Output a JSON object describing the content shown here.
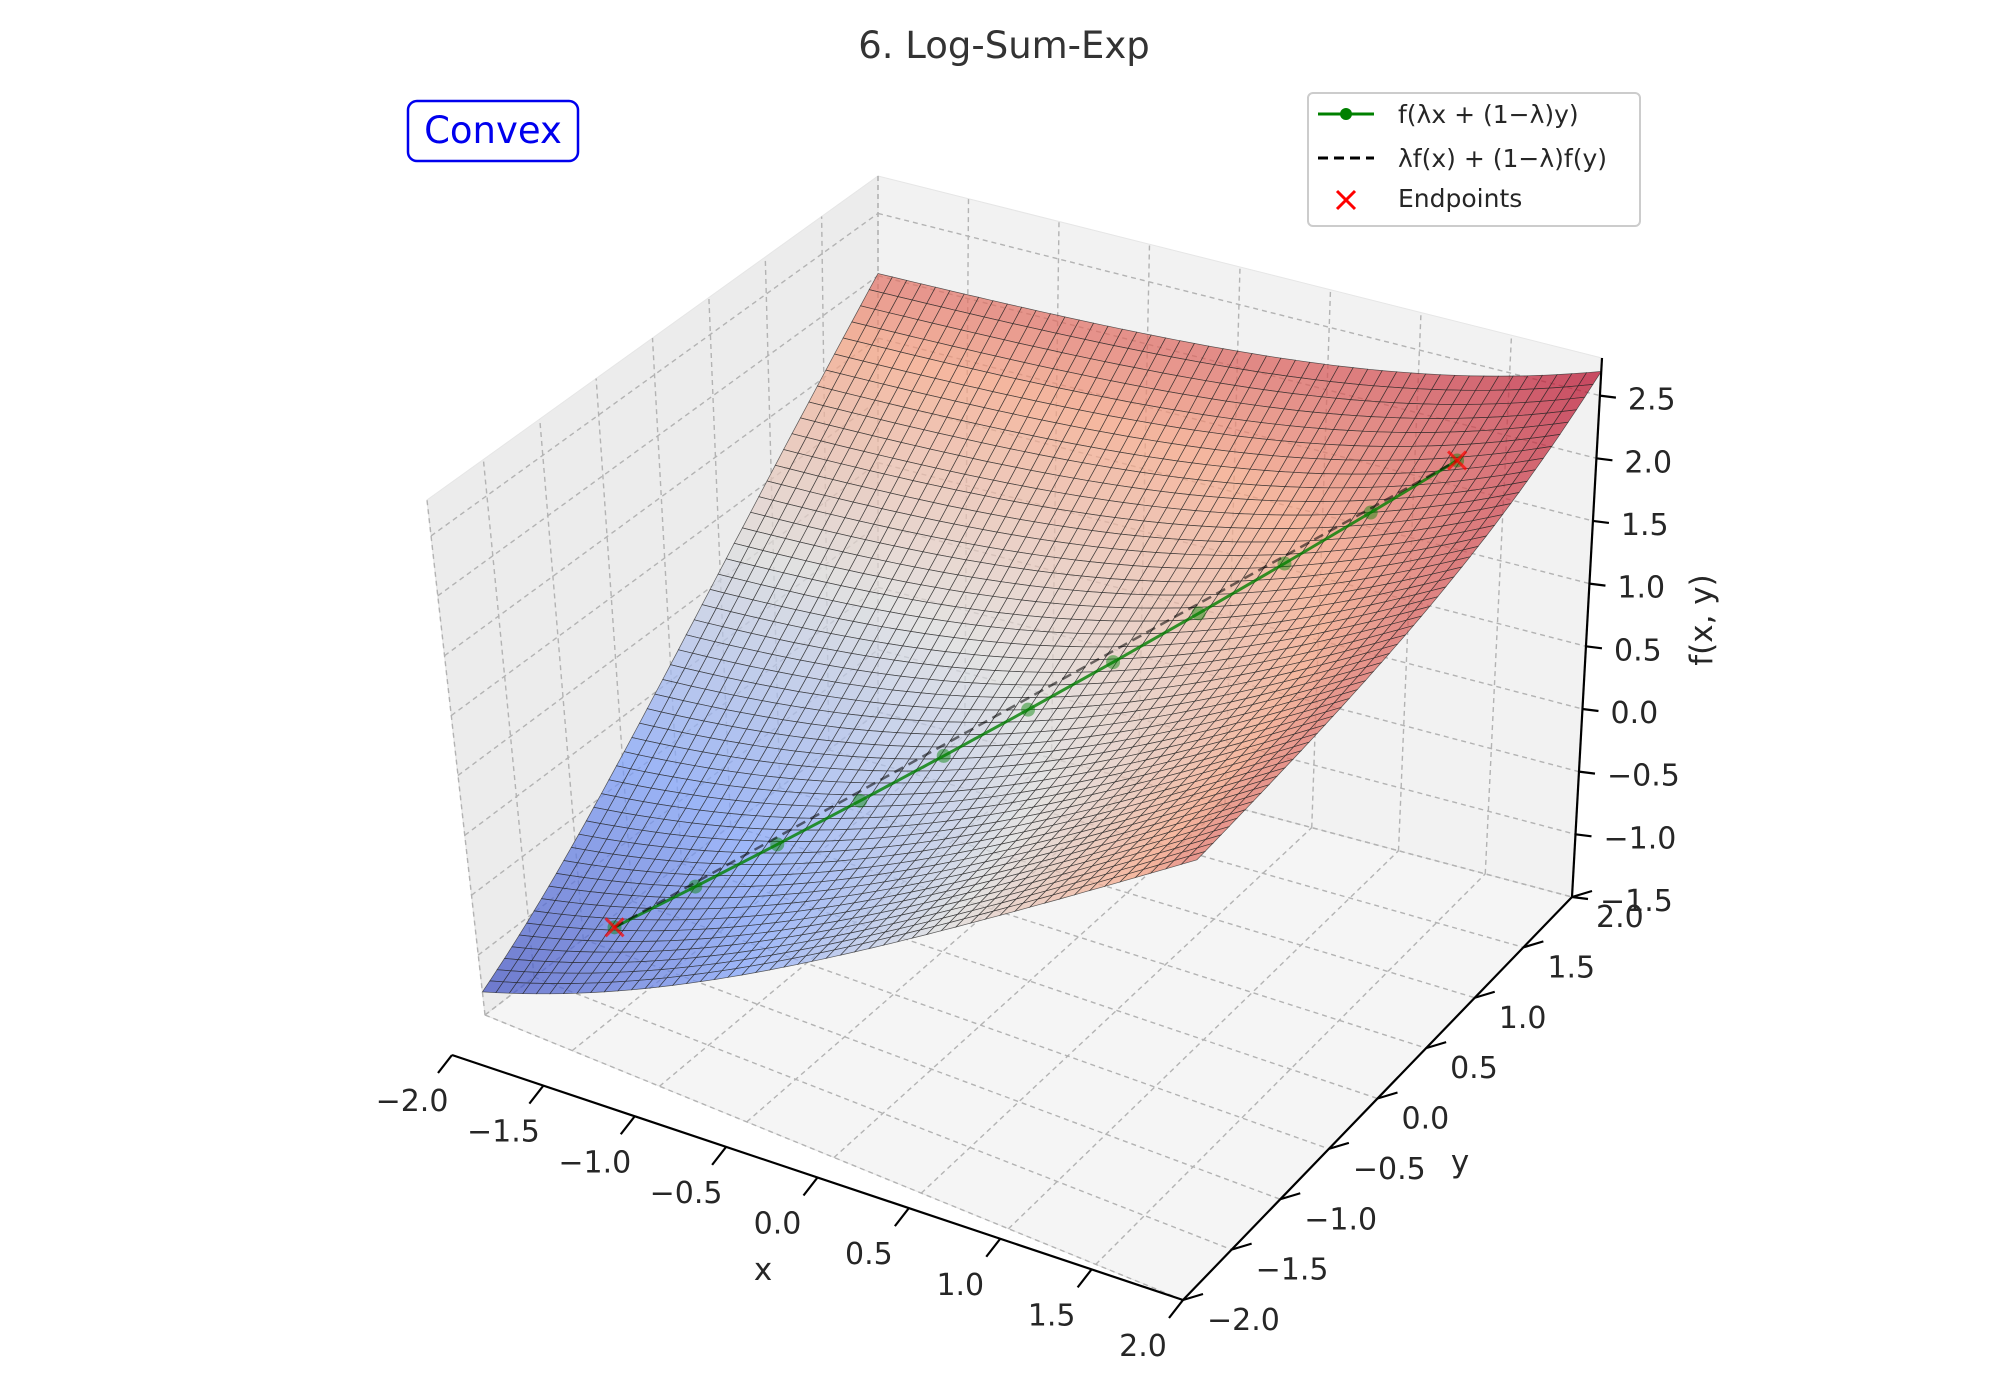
{
  "chart_data": {
    "type": "surface3d",
    "title": "6. Log-Sum-Exp",
    "function": "log(exp(x) + exp(y))",
    "xlabel": "x",
    "ylabel": "y",
    "zlabel": "f(x, y)",
    "xlim": [
      -2,
      2
    ],
    "ylim": [
      -2,
      2
    ],
    "zlim": [
      -1.5,
      2.8
    ],
    "x_ticks": [
      "−2.0",
      "−1.5",
      "−1.0",
      "−0.5",
      "0.0",
      "0.5",
      "1.0",
      "1.5",
      "2.0"
    ],
    "y_ticks": [
      "−2.0",
      "−1.5",
      "−1.0",
      "−0.5",
      "0.0",
      "0.5",
      "1.0",
      "1.5",
      "2.0"
    ],
    "z_ticks": [
      "−1.5",
      "−1.0",
      "−0.5",
      "0.0",
      "0.5",
      "1.0",
      "1.5",
      "2.0",
      "2.5"
    ],
    "grid": true,
    "colormap": "coolwarm",
    "annotation": "Convex",
    "annotation_color": "#0000ee",
    "legend_position": "top-right",
    "series": [
      {
        "name": "f(λx + (1−λ)y)",
        "style": "line-with-markers",
        "color": "#008000",
        "x": [
          -1.5,
          -1.2,
          -0.9,
          -0.6,
          -0.3,
          0.0,
          0.3,
          0.6,
          0.9,
          1.2,
          1.5
        ],
        "y": [
          -1.5,
          -1.2,
          -0.9,
          -0.6,
          -0.3,
          0.0,
          0.3,
          0.6,
          0.9,
          1.2,
          1.5
        ]
      },
      {
        "name": "λf(x) + (1−λ)f(y)",
        "style": "dashed",
        "color": "#000000",
        "x": [
          -1.5,
          1.5
        ],
        "y": [
          -1.5,
          1.5
        ]
      },
      {
        "name": "Endpoints",
        "style": "x-marker",
        "color": "#ff0000",
        "x": [
          -1.5,
          1.5
        ],
        "y": [
          -1.5,
          1.5
        ]
      }
    ]
  }
}
